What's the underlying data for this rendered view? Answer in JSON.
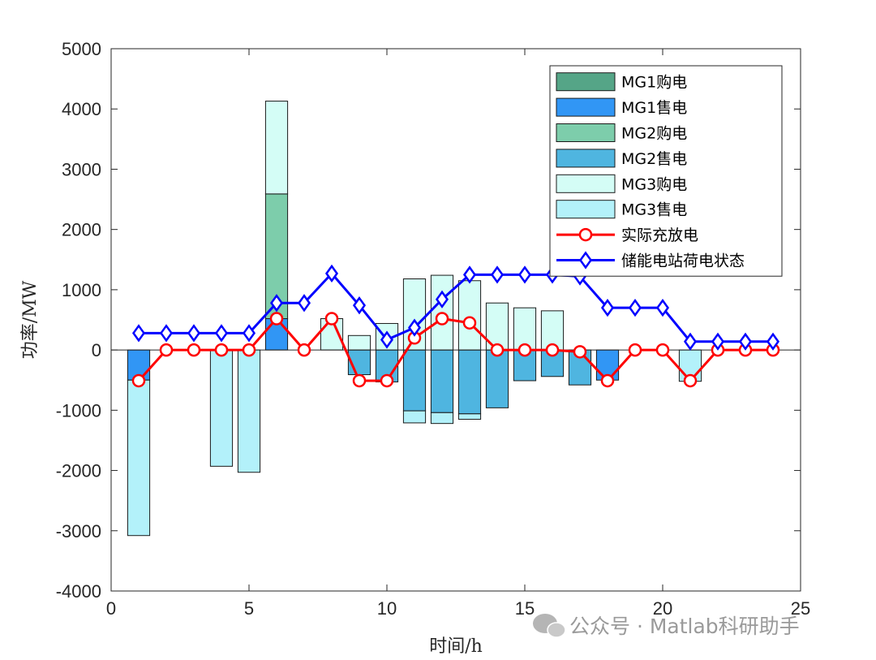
{
  "chart_data": {
    "type": "bar",
    "xlabel": "时间/h",
    "ylabel": "功率/MW",
    "xlim": [
      0,
      25
    ],
    "ylim": [
      -4000,
      5000
    ],
    "xticks": [
      "0",
      "5",
      "10",
      "15",
      "20",
      "25"
    ],
    "yticks": [
      "-4000",
      "-3000",
      "-2000",
      "-1000",
      "0",
      "1000",
      "2000",
      "3000",
      "4000",
      "5000"
    ],
    "hours": [
      1,
      2,
      3,
      4,
      5,
      6,
      7,
      8,
      9,
      10,
      11,
      12,
      13,
      14,
      15,
      16,
      17,
      18,
      19,
      20,
      21,
      22,
      23,
      24
    ],
    "stacked_series": [
      {
        "name": "MG1购电",
        "color": "#55a587",
        "values": [
          0,
          0,
          0,
          0,
          0,
          0,
          0,
          0,
          0,
          0,
          0,
          0,
          0,
          0,
          0,
          0,
          0,
          0,
          0,
          0,
          0,
          0,
          0,
          0
        ]
      },
      {
        "name": "MG1售电",
        "color": "#3196f5",
        "values": [
          -500,
          0,
          0,
          0,
          0,
          520,
          0,
          0,
          0,
          0,
          0,
          0,
          0,
          0,
          0,
          0,
          0,
          -500,
          0,
          0,
          0,
          0,
          0,
          0
        ]
      },
      {
        "name": "MG2购电",
        "color": "#7dcdab",
        "values": [
          0,
          0,
          0,
          0,
          0,
          2070,
          0,
          0,
          0,
          0,
          0,
          0,
          0,
          0,
          0,
          0,
          0,
          0,
          0,
          0,
          0,
          0,
          0,
          0
        ]
      },
      {
        "name": "MG2售电",
        "color": "#4fb5e0",
        "values": [
          0,
          0,
          0,
          0,
          0,
          0,
          0,
          0,
          -410,
          -530,
          -1010,
          -1040,
          -1060,
          -960,
          -510,
          -440,
          -580,
          0,
          0,
          0,
          0,
          0,
          0,
          0
        ]
      },
      {
        "name": "MG3购电",
        "color": "#d4fdf6",
        "values": [
          0,
          0,
          0,
          0,
          0,
          1540,
          0,
          520,
          240,
          440,
          1180,
          1240,
          1150,
          780,
          700,
          650,
          0,
          0,
          0,
          0,
          0,
          0,
          0,
          0
        ]
      },
      {
        "name": "MG3售电",
        "color": "#b3f1fa",
        "values": [
          -2580,
          0,
          0,
          -1930,
          -2030,
          0,
          0,
          0,
          0,
          0,
          -200,
          -180,
          -90,
          0,
          0,
          0,
          0,
          0,
          0,
          0,
          -520,
          0,
          0,
          0
        ]
      }
    ],
    "line_series": [
      {
        "name": "实际充放电",
        "color": "#ff0000",
        "marker": "circle",
        "values": [
          -510,
          0,
          0,
          0,
          0,
          520,
          0,
          520,
          -510,
          -510,
          200,
          520,
          450,
          0,
          0,
          0,
          -30,
          -510,
          0,
          0,
          -510,
          0,
          0,
          0
        ]
      },
      {
        "name": "储能电站荷电状态",
        "color": "#0000ff",
        "marker": "diamond",
        "values": [
          280,
          280,
          280,
          280,
          280,
          780,
          780,
          1270,
          740,
          170,
          370,
          840,
          1250,
          1250,
          1250,
          1250,
          1220,
          700,
          700,
          700,
          140,
          140,
          140,
          140
        ]
      }
    ],
    "legend_position": "top-right"
  },
  "watermark": "公众号 · Matlab科研助手"
}
